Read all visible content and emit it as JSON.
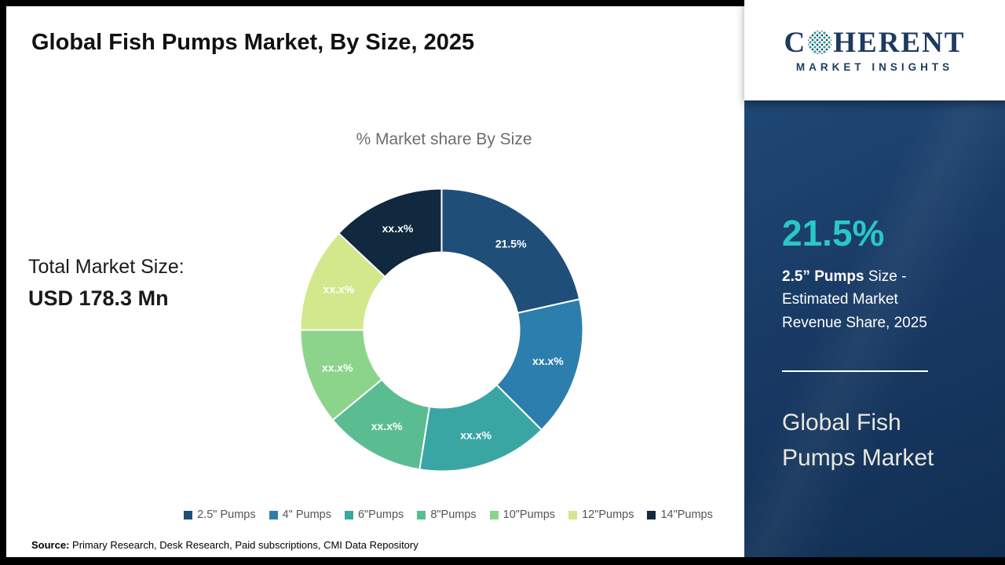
{
  "header": {
    "title": "Global Fish Pumps Market, By Size, 2025"
  },
  "chart": {
    "subtitle": "% Market share By Size",
    "total_label": "Total Market Size:",
    "total_value": "USD 178.3 Mn"
  },
  "chart_data": {
    "type": "pie",
    "donut": true,
    "title": "% Market share By Size",
    "start_angle_deg": 0,
    "direction": "clockwise",
    "legend_position": "bottom",
    "segments": [
      {
        "label": "2.5\" Pumps",
        "display": "21.5%",
        "value": 21.5,
        "value_known": true,
        "color": "#1f4e79"
      },
      {
        "label": "4\" Pumps",
        "display": "xx.x%",
        "value": 16.0,
        "value_known": false,
        "color": "#2c7fac"
      },
      {
        "label": "6\"Pumps",
        "display": "xx.x%",
        "value": 15.0,
        "value_known": false,
        "color": "#3aa6a4"
      },
      {
        "label": "8\"Pumps",
        "display": "xx.x%",
        "value": 11.5,
        "value_known": false,
        "color": "#5abd92"
      },
      {
        "label": "10\"Pumps",
        "display": "xx.x%",
        "value": 11.0,
        "value_known": false,
        "color": "#8cd48c"
      },
      {
        "label": "12\"Pumps",
        "display": "xx.x%",
        "value": 12.0,
        "value_known": false,
        "color": "#d3e88c"
      },
      {
        "label": "14\"Pumps",
        "display": "xx.x%",
        "value": 13.0,
        "value_known": false,
        "color": "#10293f"
      }
    ]
  },
  "footer": {
    "source_label": "Source:",
    "source_text": "Primary Research, Desk Research, Paid subscriptions, CMI Data Repository"
  },
  "sidebar": {
    "logo": {
      "brand_first": "C",
      "brand_rest": "HERENT",
      "subtitle": "MARKET INSIGHTS"
    },
    "stat_value": "21.5%",
    "stat_desc_bold": "2.5” Pumps",
    "stat_desc_rest": " Size - Estimated Market Revenue Share, 2025",
    "product_title": "Global Fish Pumps Market"
  }
}
